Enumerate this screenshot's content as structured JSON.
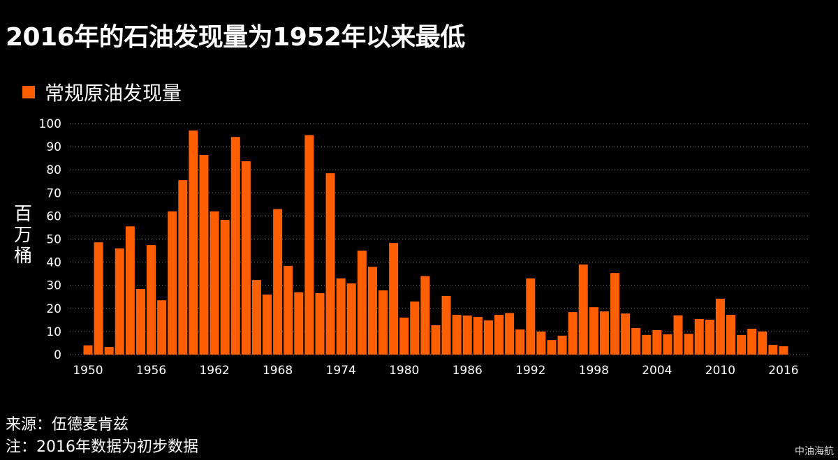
{
  "title": "2016年的石油发现量为1952年以来最低",
  "source": "来源：伍德麦肯兹",
  "note": "注：2016年数据为初步数据",
  "brand": "中油海航",
  "colors": {
    "bar": "#ff5f00",
    "grid": "#777777",
    "text": "#ffffff",
    "background": "#000000"
  },
  "chart_data": {
    "type": "bar",
    "title": "2016年的石油发现量为1952年以来最低",
    "legend": [
      "常规原油发现量"
    ],
    "legend_position": "top-left",
    "xlabel": "",
    "ylabel": "百万桶",
    "ylim": [
      0,
      100
    ],
    "yticks": [
      0,
      10,
      20,
      30,
      40,
      50,
      60,
      70,
      80,
      90,
      100
    ],
    "xticks": [
      1950,
      1956,
      1962,
      1968,
      1974,
      1980,
      1986,
      1992,
      1998,
      2004,
      2010,
      2016
    ],
    "grid": true,
    "x_start": 1950,
    "series": [
      {
        "name": "常规原油发现量",
        "values": [
          4,
          48.6,
          3.3,
          46,
          55.5,
          28.4,
          47.4,
          23.5,
          62,
          75.5,
          97,
          86.4,
          62,
          58.3,
          94.2,
          83.7,
          32.3,
          26,
          63,
          38.4,
          27,
          95,
          26.6,
          78.5,
          33,
          30.8,
          45,
          38,
          27.8,
          48.3,
          16,
          23,
          34,
          12.7,
          25.4,
          17.2,
          16.9,
          16.3,
          14.8,
          17.2,
          18,
          10.9,
          33,
          10,
          6.3,
          8.2,
          18.4,
          39,
          20.5,
          18.7,
          35.3,
          17.8,
          11.5,
          8.5,
          10.6,
          8.8,
          17,
          9,
          15.4,
          15.1,
          24.2,
          17.2,
          8.5,
          11.2,
          10,
          4.2,
          3.6
        ]
      }
    ]
  }
}
